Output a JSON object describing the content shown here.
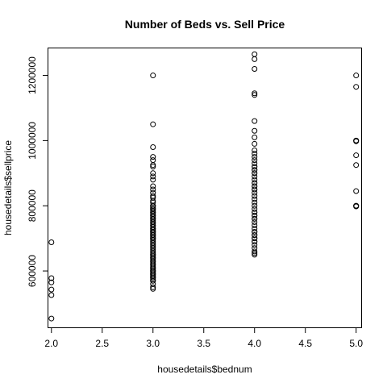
{
  "chart_data": {
    "type": "scatter",
    "title": "Number of Beds vs. Sell Price",
    "xlabel": "housedetails$bednum",
    "ylabel": "housedetails$sellprice",
    "xlim": [
      1.97,
      5.05
    ],
    "ylim": [
      427000,
      1283000
    ],
    "xticks": [
      2.0,
      2.5,
      3.0,
      3.5,
      4.0,
      4.5,
      5.0
    ],
    "xtick_labels": [
      "2.0",
      "2.5",
      "3.0",
      "3.5",
      "4.0",
      "4.5",
      "5.0"
    ],
    "yticks": [
      600000,
      800000,
      1000000,
      1200000
    ],
    "ytick_labels": [
      "600000",
      "800000",
      "1000000",
      "1200000"
    ],
    "grid": false,
    "x": [
      2,
      2,
      2,
      2,
      2,
      2,
      3,
      3,
      3,
      3,
      3,
      3,
      3,
      3,
      3,
      3,
      3,
      3,
      3,
      3,
      3,
      3,
      3,
      3,
      3,
      3,
      3,
      3,
      3,
      3,
      3,
      3,
      3,
      3,
      3,
      3,
      3,
      3,
      3,
      3,
      3,
      3,
      3,
      3,
      3,
      3,
      3,
      3,
      3,
      3,
      3,
      3,
      3,
      3,
      3,
      3,
      3,
      3,
      3,
      3,
      3,
      3,
      3,
      3,
      3,
      3,
      3,
      3,
      3,
      3,
      3,
      3,
      3,
      3,
      3,
      3,
      3,
      3,
      3,
      3,
      3,
      3,
      3,
      3,
      3,
      3,
      3,
      3,
      3,
      3,
      3,
      3,
      3,
      4,
      4,
      4,
      4,
      4,
      4,
      4,
      4,
      4,
      4,
      4,
      4,
      4,
      4,
      4,
      4,
      4,
      4,
      4,
      4,
      4,
      4,
      4,
      4,
      4,
      4,
      4,
      4,
      4,
      4,
      4,
      4,
      4,
      4,
      4,
      4,
      4,
      4,
      4,
      4,
      4,
      4,
      4,
      4,
      4,
      4,
      4,
      4,
      4,
      4,
      4,
      4,
      4,
      4,
      4,
      4,
      5,
      5,
      5,
      5,
      5,
      5,
      5,
      5,
      5,
      5,
      5
    ],
    "y": [
      688000,
      578000,
      565000,
      543000,
      526000,
      454000,
      1200000,
      1050000,
      980000,
      950000,
      940000,
      925000,
      920000,
      900000,
      890000,
      880000,
      860000,
      850000,
      840000,
      830000,
      825000,
      815000,
      810000,
      800000,
      795000,
      790000,
      785000,
      780000,
      775000,
      770000,
      765000,
      760000,
      755000,
      750000,
      745000,
      740000,
      735000,
      730000,
      725000,
      720000,
      715000,
      710000,
      705000,
      700000,
      695000,
      690000,
      685000,
      680000,
      675000,
      670000,
      665000,
      660000,
      655000,
      650000,
      645000,
      640000,
      635000,
      630000,
      625000,
      620000,
      615000,
      610000,
      605000,
      600000,
      595000,
      590000,
      585000,
      580000,
      575000,
      570000,
      560000,
      550000,
      545000,
      700000,
      710000,
      720000,
      730000,
      740000,
      750000,
      760000,
      770000,
      780000,
      790000,
      800000,
      650000,
      640000,
      630000,
      620000,
      610000,
      600000,
      590000,
      580000,
      570000,
      1265000,
      1250000,
      1220000,
      1145000,
      1140000,
      1060000,
      1030000,
      1010000,
      990000,
      970000,
      960000,
      950000,
      940000,
      920000,
      910000,
      900000,
      890000,
      880000,
      870000,
      860000,
      850000,
      840000,
      830000,
      820000,
      810000,
      800000,
      790000,
      780000,
      770000,
      760000,
      750000,
      740000,
      730000,
      720000,
      710000,
      700000,
      690000,
      680000,
      670000,
      660000,
      655000,
      650000,
      900000,
      910000,
      920000,
      930000,
      870000,
      860000,
      850000,
      780000,
      770000,
      760000,
      720000,
      710000,
      700000,
      690000,
      1200000,
      1165000,
      1000000,
      1000000,
      998000,
      955000,
      925000,
      845000,
      800000,
      800000,
      798000
    ]
  }
}
